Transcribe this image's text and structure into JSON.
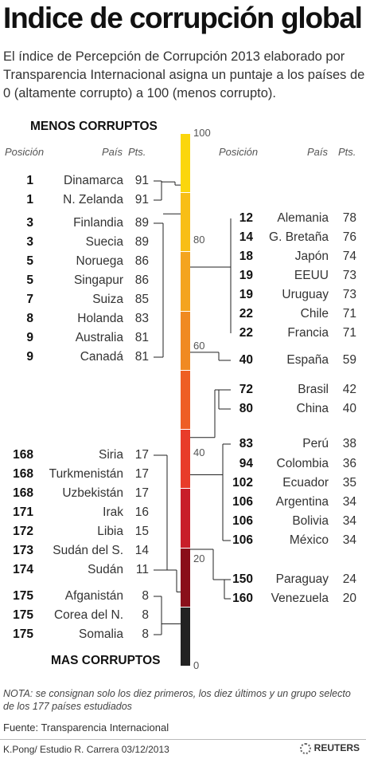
{
  "title": "Indice de corrupción global",
  "subtitle": "El índice de Percepción de Corrupción 2013 elaborado por Transparencia Internacional asigna un puntaje a los países de 0 (altamente corrupto) a 100 (menos corrupto).",
  "labels": {
    "top": "MENOS CORRUPTOS",
    "bottom": "MAS CORRUPTOS",
    "col_pos": "Posición",
    "col_country": "País",
    "col_pts": "Pts."
  },
  "note": "NOTA: se consignan solo los diez primeros, los diez últimos y un grupo selecto de los 177 países estudiados",
  "source": "Fuente:  Transparencia Internacional",
  "credit": "K.Pong/ Estudio R. Carrera 03/12/2013",
  "logo": "REUTERS",
  "chart_data": {
    "type": "table",
    "scale": {
      "min": 0,
      "max": 100,
      "ticks": [
        0,
        20,
        40,
        60,
        80,
        100
      ]
    },
    "bar_colors": [
      "#222222",
      "#8a0f1a",
      "#c81e2a",
      "#e83c2a",
      "#ee5e24",
      "#f08a22",
      "#f4a41f",
      "#f8be16",
      "#fbd60c"
    ],
    "left": [
      {
        "pos": "1",
        "country": "Dinamarca",
        "pts": 91
      },
      {
        "pos": "1",
        "country": "N. Zelanda",
        "pts": 91
      },
      {
        "pos": "3",
        "country": "Finlandia",
        "pts": 89
      },
      {
        "pos": "3",
        "country": "Suecia",
        "pts": 89
      },
      {
        "pos": "5",
        "country": "Noruega",
        "pts": 86
      },
      {
        "pos": "5",
        "country": "Singapur",
        "pts": 86
      },
      {
        "pos": "7",
        "country": "Suiza",
        "pts": 85
      },
      {
        "pos": "8",
        "country": "Holanda",
        "pts": 83
      },
      {
        "pos": "9",
        "country": "Australia",
        "pts": 81
      },
      {
        "pos": "9",
        "country": "Canadá",
        "pts": 81
      },
      {
        "pos": "168",
        "country": "Siria",
        "pts": 17
      },
      {
        "pos": "168",
        "country": "Turkmenistán",
        "pts": 17
      },
      {
        "pos": "168",
        "country": "Uzbekistán",
        "pts": 17
      },
      {
        "pos": "171",
        "country": "Irak",
        "pts": 16
      },
      {
        "pos": "172",
        "country": "Libia",
        "pts": 15
      },
      {
        "pos": "173",
        "country": "Sudán del S.",
        "pts": 14
      },
      {
        "pos": "174",
        "country": "Sudán",
        "pts": 11
      },
      {
        "pos": "175",
        "country": "Afganistán",
        "pts": 8
      },
      {
        "pos": "175",
        "country": "Corea del N.",
        "pts": 8
      },
      {
        "pos": "175",
        "country": "Somalia",
        "pts": 8
      }
    ],
    "right": [
      {
        "pos": "12",
        "country": "Alemania",
        "pts": 78
      },
      {
        "pos": "14",
        "country": "G. Bretaña",
        "pts": 76
      },
      {
        "pos": "18",
        "country": "Japón",
        "pts": 74
      },
      {
        "pos": "19",
        "country": "EEUU",
        "pts": 73
      },
      {
        "pos": "19",
        "country": "Uruguay",
        "pts": 73
      },
      {
        "pos": "22",
        "country": "Chile",
        "pts": 71
      },
      {
        "pos": "22",
        "country": "Francia",
        "pts": 71
      },
      {
        "pos": "40",
        "country": "España",
        "pts": 59
      },
      {
        "pos": "72",
        "country": "Brasil",
        "pts": 42
      },
      {
        "pos": "80",
        "country": "China",
        "pts": 40
      },
      {
        "pos": "83",
        "country": "Perú",
        "pts": 38
      },
      {
        "pos": "94",
        "country": "Colombia",
        "pts": 36
      },
      {
        "pos": "102",
        "country": "Ecuador",
        "pts": 35
      },
      {
        "pos": "106",
        "country": "Argentina",
        "pts": 34
      },
      {
        "pos": "106",
        "country": "Bolivia",
        "pts": 34
      },
      {
        "pos": "106",
        "country": "México",
        "pts": 34
      },
      {
        "pos": "150",
        "country": "Paraguay",
        "pts": 24
      },
      {
        "pos": "160",
        "country": "Venezuela",
        "pts": 20
      }
    ]
  }
}
